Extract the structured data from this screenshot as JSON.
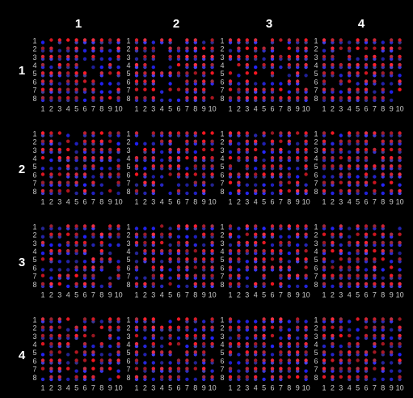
{
  "column_headers": [
    "1",
    "2",
    "3",
    "4"
  ],
  "row_headers": [
    "1",
    "2",
    "3",
    "4"
  ],
  "spot_row_labels": [
    "1",
    "2",
    "3",
    "4",
    "5",
    "6",
    "7",
    "8"
  ],
  "spot_col_labels": [
    "1",
    "2",
    "3",
    "4",
    "5",
    "6",
    "7",
    "8",
    "9",
    "10"
  ]
}
